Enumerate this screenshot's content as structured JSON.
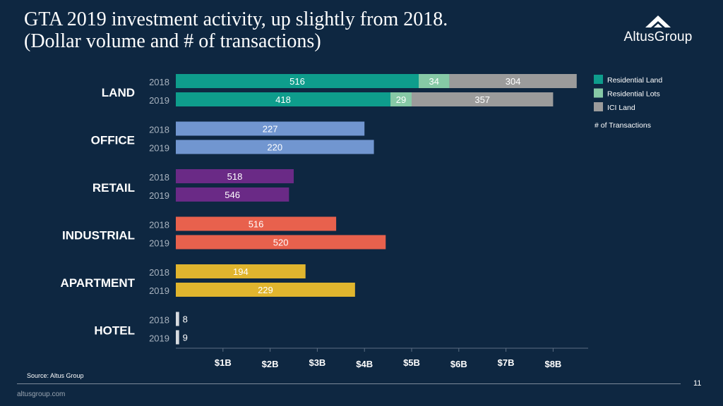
{
  "title_line1": "GTA 2019 investment activity, up slightly from 2018.",
  "title_line2": "(Dollar volume and # of transactions)",
  "logo": {
    "text_altus": "Altus",
    "text_group": "Group"
  },
  "source": "Source:  Altus Group",
  "url": "altusgroup.com",
  "page_number": "11",
  "colors": {
    "background": "#0e2741",
    "residential_land": "#0e9d8c",
    "residential_lots": "#86c9a6",
    "ici_land": "#9b9b9b",
    "office": "#7196d0",
    "retail": "#6a2a86",
    "industrial": "#e8614d",
    "apartment": "#e0b52e",
    "hotel": "#d7dbe0"
  },
  "chart_data": {
    "type": "bar",
    "orientation": "horizontal",
    "stacked": true,
    "units": "$B",
    "xlim": [
      0,
      8.7
    ],
    "x_ticks": [
      {
        "value": 1,
        "label": "$1B"
      },
      {
        "value": 2,
        "label": "$2B"
      },
      {
        "value": 3,
        "label": "$3B"
      },
      {
        "value": 4,
        "label": "$4B"
      },
      {
        "value": 5,
        "label": "$5B"
      },
      {
        "value": 6,
        "label": "$6B"
      },
      {
        "value": 7,
        "label": "$7B"
      },
      {
        "value": 8,
        "label": "$8B"
      }
    ],
    "legend": {
      "position": "top-right",
      "items": [
        {
          "label": "Residential Land",
          "color": "#0e9d8c"
        },
        {
          "label": "Residential Lots",
          "color": "#86c9a6"
        },
        {
          "label": "ICI Land",
          "color": "#9b9b9b"
        }
      ],
      "note": "# of Transactions"
    },
    "groups": [
      {
        "name": "LAND",
        "rows": [
          {
            "year": "2018",
            "segments": [
              {
                "series": "Residential Land",
                "value": 5.15,
                "count": "516",
                "color": "#0e9d8c"
              },
              {
                "series": "Residential Lots",
                "value": 0.65,
                "count": "34",
                "color": "#86c9a6"
              },
              {
                "series": "ICI Land",
                "value": 2.7,
                "count": "304",
                "color": "#9b9b9b"
              }
            ]
          },
          {
            "year": "2019",
            "segments": [
              {
                "series": "Residential Land",
                "value": 4.55,
                "count": "418",
                "color": "#0e9d8c"
              },
              {
                "series": "Residential Lots",
                "value": 0.45,
                "count": "29",
                "color": "#86c9a6"
              },
              {
                "series": "ICI Land",
                "value": 3.0,
                "count": "357",
                "color": "#9b9b9b"
              }
            ]
          }
        ]
      },
      {
        "name": "OFFICE",
        "rows": [
          {
            "year": "2018",
            "segments": [
              {
                "series": "Office",
                "value": 4.0,
                "count": "227",
                "color": "#7196d0"
              }
            ]
          },
          {
            "year": "2019",
            "segments": [
              {
                "series": "Office",
                "value": 4.2,
                "count": "220",
                "color": "#7196d0"
              }
            ]
          }
        ]
      },
      {
        "name": "RETAIL",
        "rows": [
          {
            "year": "2018",
            "segments": [
              {
                "series": "Retail",
                "value": 2.5,
                "count": "518",
                "color": "#6a2a86"
              }
            ]
          },
          {
            "year": "2019",
            "segments": [
              {
                "series": "Retail",
                "value": 2.4,
                "count": "546",
                "color": "#6a2a86"
              }
            ]
          }
        ]
      },
      {
        "name": "INDUSTRIAL",
        "rows": [
          {
            "year": "2018",
            "segments": [
              {
                "series": "Industrial",
                "value": 3.4,
                "count": "516",
                "color": "#e8614d"
              }
            ]
          },
          {
            "year": "2019",
            "segments": [
              {
                "series": "Industrial",
                "value": 4.45,
                "count": "520",
                "color": "#e8614d"
              }
            ]
          }
        ]
      },
      {
        "name": "APARTMENT",
        "rows": [
          {
            "year": "2018",
            "segments": [
              {
                "series": "Apartment",
                "value": 2.75,
                "count": "194",
                "color": "#e0b52e"
              }
            ]
          },
          {
            "year": "2019",
            "segments": [
              {
                "series": "Apartment",
                "value": 3.8,
                "count": "229",
                "color": "#e0b52e"
              }
            ]
          }
        ]
      },
      {
        "name": "HOTEL",
        "rows": [
          {
            "year": "2018",
            "segments": [
              {
                "series": "Hotel",
                "value": 0.07,
                "count": "8",
                "color": "#d7dbe0"
              }
            ]
          },
          {
            "year": "2019",
            "segments": [
              {
                "series": "Hotel",
                "value": 0.07,
                "count": "9",
                "color": "#d7dbe0"
              }
            ]
          }
        ]
      }
    ]
  }
}
